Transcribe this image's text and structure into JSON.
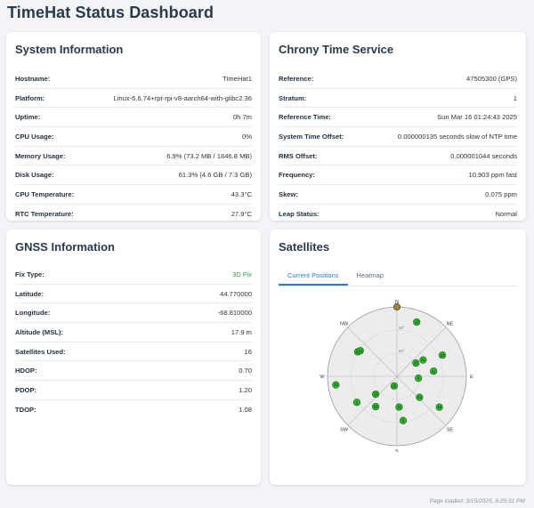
{
  "app": {
    "title": "TimeHat Status Dashboard"
  },
  "system": {
    "title": "System Information",
    "rows": [
      {
        "label": "Hostname:",
        "value": "TimeHat1"
      },
      {
        "label": "Platform:",
        "value": "Linux-6.6.74+rpt-rpi-v8-aarch64-with-glibc2.36"
      },
      {
        "label": "Uptime:",
        "value": "0h 7m"
      },
      {
        "label": "CPU Usage:",
        "value": "0%"
      },
      {
        "label": "Memory Usage:",
        "value": "6.9% (73.2 MB / 1846.8 MB)"
      },
      {
        "label": "Disk Usage:",
        "value": "61.3% (4.6 GB / 7.3 GB)"
      },
      {
        "label": "CPU Temperature:",
        "value": "43.3°C"
      },
      {
        "label": "RTC Temperature:",
        "value": "27.9°C"
      }
    ]
  },
  "chrony": {
    "title": "Chrony Time Service",
    "rows": [
      {
        "label": "Reference:",
        "value": "47505300 (GPS)"
      },
      {
        "label": "Stratum:",
        "value": "1"
      },
      {
        "label": "Reference Time:",
        "value": "Sun Mar 16 01:24:43 2025"
      },
      {
        "label": "System Time Offset:",
        "value": "0.000000135 seconds slow of NTP time"
      },
      {
        "label": "RMS Offset:",
        "value": "0.000001044 seconds"
      },
      {
        "label": "Frequency:",
        "value": "10.903 ppm fast"
      },
      {
        "label": "Skew:",
        "value": "0.075 ppm"
      },
      {
        "label": "Leap Status:",
        "value": "Normal"
      }
    ]
  },
  "gnss": {
    "title": "GNSS Information",
    "rows": [
      {
        "label": "Fix Type:",
        "value": "3D Fix"
      },
      {
        "label": "Latitude:",
        "value": "44.770000"
      },
      {
        "label": "Longitude:",
        "value": "-68.810000"
      },
      {
        "label": "Altitude (MSL):",
        "value": "17.9 m"
      },
      {
        "label": "Satellites Used:",
        "value": "16"
      },
      {
        "label": "HDOP:",
        "value": "0.70"
      },
      {
        "label": "PDOP:",
        "value": "1.20"
      },
      {
        "label": "TDOP:",
        "value": "1.08"
      }
    ],
    "fix_color": "#2e9e44"
  },
  "satellites": {
    "title": "Satellites",
    "tabs": [
      "Current Positions",
      "Heatmap"
    ],
    "active_tab": 0,
    "compass": {
      "N": "N",
      "NE": "NE",
      "E": "E",
      "SE": "SE",
      "S": "S",
      "SW": "SW",
      "W": "W",
      "NW": "NW"
    },
    "elevation_labels": [
      "30°",
      "60°"
    ],
    "sat_color": "#2fb62f",
    "sat_color_selected": "#b07a45",
    "sats": [
      {
        "id": "",
        "az": 0,
        "el": 0,
        "selected": true
      },
      {
        "id": "12",
        "az": 20,
        "el": 15
      },
      {
        "id": "13",
        "az": 302,
        "el": 30
      },
      {
        "id": "14",
        "az": 305,
        "el": 32
      },
      {
        "id": "10",
        "az": 65,
        "el": 25
      },
      {
        "id": "21",
        "az": 58,
        "el": 50
      },
      {
        "id": "31",
        "az": 82,
        "el": 42
      },
      {
        "id": "25",
        "az": 55,
        "el": 60
      },
      {
        "id": "6",
        "az": 95,
        "el": 62
      },
      {
        "id": "22",
        "az": 262,
        "el": 10
      },
      {
        "id": "19",
        "az": 230,
        "el": 54
      },
      {
        "id": "29",
        "az": 196,
        "el": 77
      },
      {
        "id": "26",
        "az": 215,
        "el": 42
      },
      {
        "id": "1",
        "az": 237,
        "el": 28
      },
      {
        "id": "11",
        "az": 176,
        "el": 50
      },
      {
        "id": "21b",
        "label": "21",
        "az": 133,
        "el": 50
      },
      {
        "id": "5",
        "az": 172,
        "el": 32
      },
      {
        "id": "18",
        "az": 126,
        "el": 22
      }
    ]
  },
  "footer": {
    "text": "Page loaded: 3/15/2025, 9:25:31 PM"
  }
}
